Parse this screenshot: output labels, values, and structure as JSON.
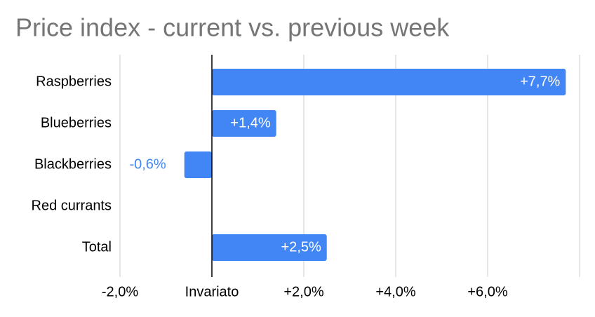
{
  "chart_data": {
    "type": "bar",
    "orientation": "horizontal",
    "title": "Price index - current vs. previous week",
    "categories": [
      "Raspberries",
      "Blueberries",
      "Blackberries",
      "Red currants",
      "Total"
    ],
    "values": [
      7.7,
      1.4,
      -0.6,
      0,
      2.5
    ],
    "value_labels": [
      "+7,7%",
      "+1,4%",
      "-0,6%",
      null,
      "+2,5%"
    ],
    "color": "#4285f4",
    "xlim": [
      -2,
      8
    ],
    "xticks": [
      {
        "value": -2,
        "label": "-2,0%"
      },
      {
        "value": 0,
        "label": "Invariato"
      },
      {
        "value": 2,
        "label": "+2,0%"
      },
      {
        "value": 4,
        "label": "+4,0%"
      },
      {
        "value": 6,
        "label": "+6,0%"
      }
    ],
    "grid": true
  }
}
